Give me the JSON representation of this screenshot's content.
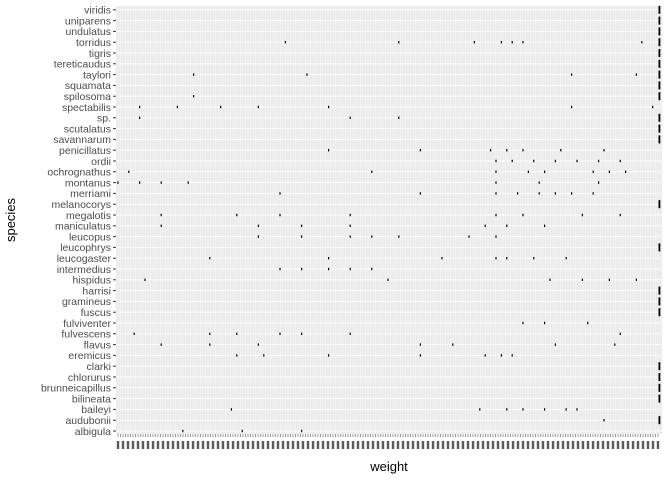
{
  "chart_data": {
    "type": "scatter",
    "title": "",
    "xlabel": "weight",
    "ylabel": "species",
    "x_axis": "categorical weight values (tick labels overlap and are illegible)",
    "grid": true,
    "legend": "none",
    "colors": {
      "panel": "#ebebeb",
      "grid_major": "#ffffff",
      "point": "#000000",
      "text": "#4d4d4d"
    },
    "categories": [
      "albigula",
      "audubonii",
      "baileyi",
      "bilineata",
      "brunneicapillus",
      "chlorurus",
      "clarki",
      "eremicus",
      "flavus",
      "fulvescens",
      "fulviventer",
      "fuscus",
      "gramineus",
      "harrisi",
      "hispidus",
      "intermedius",
      "leucogaster",
      "leucophrys",
      "leucopus",
      "maniculatus",
      "megalotis",
      "melanocorys",
      "merriami",
      "montanus",
      "ochrognathus",
      "ordii",
      "penicillatus",
      "savannarum",
      "scutalatus",
      "sp.",
      "spectabilis",
      "spilosoma",
      "squamata",
      "taylori",
      "tereticaudus",
      "tigris",
      "torridus",
      "undulatus",
      "uniparens",
      "viridis"
    ],
    "na_column": [
      "audubonii",
      "bilineata",
      "brunneicapillus",
      "chlorurus",
      "clarki",
      "fuscus",
      "gramineus",
      "harrisi",
      "leucophrys",
      "melanocorys",
      "savannarum",
      "scutalatus",
      "sp.",
      "spilosoma",
      "squamata",
      "taylori",
      "tereticaudus",
      "tigris",
      "torridus",
      "undulatus",
      "uniparens",
      "viridis"
    ],
    "points": [
      {
        "species": "albigula",
        "x": [
          0.12,
          0.23,
          0.34
        ]
      },
      {
        "species": "audubonii",
        "x": [
          0.9
        ]
      },
      {
        "species": "baileyi",
        "x": [
          0.21,
          0.67,
          0.72,
          0.75,
          0.79,
          0.83,
          0.85
        ]
      },
      {
        "species": "eremicus",
        "x": [
          0.22,
          0.27,
          0.39,
          0.56,
          0.68,
          0.71,
          0.73
        ]
      },
      {
        "species": "flavus",
        "x": [
          0.08,
          0.17,
          0.26,
          0.56,
          0.62,
          0.81,
          0.92
        ]
      },
      {
        "species": "fulvescens",
        "x": [
          0.03,
          0.17,
          0.22,
          0.3,
          0.34,
          0.43,
          0.93
        ]
      },
      {
        "species": "fulviventer",
        "x": [
          0.75,
          0.79,
          0.87
        ]
      },
      {
        "species": "hispidus",
        "x": [
          0.05,
          0.5,
          0.8,
          0.86,
          0.91,
          0.96
        ]
      },
      {
        "species": "intermedius",
        "x": [
          0.3,
          0.34,
          0.39,
          0.43,
          0.47
        ]
      },
      {
        "species": "leucogaster",
        "x": [
          0.17,
          0.39,
          0.6,
          0.7,
          0.72,
          0.77,
          0.83
        ]
      },
      {
        "species": "leucopus",
        "x": [
          0.26,
          0.34,
          0.43,
          0.47,
          0.52,
          0.65,
          0.7
        ]
      },
      {
        "species": "maniculatus",
        "x": [
          0.08,
          0.26,
          0.34,
          0.43,
          0.68,
          0.72,
          0.79
        ]
      },
      {
        "species": "megalotis",
        "x": [
          0.08,
          0.22,
          0.3,
          0.43,
          0.7,
          0.75,
          0.86,
          0.93
        ]
      },
      {
        "species": "merriami",
        "x": [
          0.3,
          0.56,
          0.7,
          0.74,
          0.78,
          0.81,
          0.84,
          0.88
        ]
      },
      {
        "species": "montanus",
        "x": [
          0.0,
          0.04,
          0.08,
          0.13,
          0.7,
          0.78,
          0.89
        ]
      },
      {
        "species": "ochrognathus",
        "x": [
          0.02,
          0.47,
          0.7,
          0.76,
          0.79,
          0.88,
          0.91,
          0.94
        ]
      },
      {
        "species": "ordii",
        "x": [
          0.7,
          0.73,
          0.77,
          0.81,
          0.85,
          0.89,
          0.93
        ]
      },
      {
        "species": "penicillatus",
        "x": [
          0.39,
          0.56,
          0.69,
          0.72,
          0.75,
          0.82,
          0.9
        ]
      },
      {
        "species": "sp.",
        "x": [
          0.04,
          0.43,
          0.52
        ]
      },
      {
        "species": "spectabilis",
        "x": [
          0.04,
          0.11,
          0.19,
          0.26,
          0.39,
          0.84,
          0.99
        ]
      },
      {
        "species": "spilosoma",
        "x": [
          0.14
        ]
      },
      {
        "species": "taylori",
        "x": [
          0.14,
          0.35,
          0.84,
          0.96
        ]
      },
      {
        "species": "torridus",
        "x": [
          0.31,
          0.52,
          0.66,
          0.71,
          0.73,
          0.75,
          0.97
        ]
      }
    ]
  }
}
